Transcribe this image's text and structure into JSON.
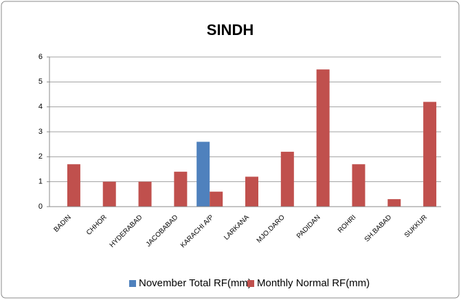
{
  "chart_data": {
    "type": "bar",
    "title": "SINDH",
    "categories": [
      "BADIN",
      "CHHOR",
      "HYDERABAD",
      "JACOBABAD",
      "KARACHI A/P",
      "LARKANA",
      "MJO.DARO",
      "PADIDAN",
      "ROHRI",
      "SH.BABAD",
      "SUKKUR"
    ],
    "series": [
      {
        "name": "November Total RF(mm)",
        "color": "#4f81bd",
        "values": [
          0,
          0,
          0,
          0,
          2.6,
          0,
          0,
          0,
          0,
          0,
          0
        ]
      },
      {
        "name": "Monthly Normal RF(mm)",
        "color": "#c0504d",
        "values": [
          1.7,
          1.0,
          1.0,
          1.4,
          0.6,
          1.2,
          2.2,
          5.5,
          1.7,
          0.3,
          4.2
        ]
      }
    ],
    "ylim": [
      0,
      6
    ],
    "yticks": [
      0,
      1,
      2,
      3,
      4,
      5,
      6
    ],
    "grid": true,
    "legend": "bottom"
  }
}
